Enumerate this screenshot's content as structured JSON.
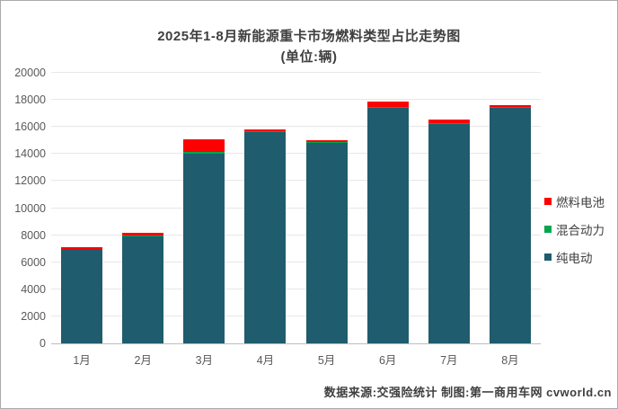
{
  "title": {
    "line1": "2025年1-8月新能源重卡市场燃料类型占比走势图",
    "line2": "(单位:辆)"
  },
  "footer": {
    "text": "数据来源:交强险统计  制图:第一商用车网 cvworld.cn"
  },
  "chart_data": {
    "type": "bar",
    "stacked": true,
    "title": "2025年1-8月新能源重卡市场燃料类型占比走势图(单位:辆)",
    "categories": [
      "1月",
      "2月",
      "3月",
      "4月",
      "5月",
      "6月",
      "7月",
      "8月"
    ],
    "series": [
      {
        "name": "纯电动",
        "color": "#1f5c6d",
        "values": [
          6950,
          7900,
          14050,
          15600,
          14850,
          17400,
          16200,
          17400
        ]
      },
      {
        "name": "混合动力",
        "color": "#00a650",
        "values": [
          30,
          100,
          130,
          110,
          40,
          110,
          100,
          110
        ]
      },
      {
        "name": "燃料电池",
        "color": "#fe0000",
        "values": [
          110,
          150,
          920,
          140,
          130,
          380,
          280,
          130
        ]
      }
    ],
    "totals": [
      7090,
      8150,
      15100,
      15850,
      15020,
      17890,
      16580,
      17640
    ],
    "ylim": [
      0,
      20000
    ],
    "ytick_step": 2000,
    "ytick_labels": [
      "0",
      "2000",
      "4000",
      "6000",
      "8000",
      "10000",
      "12000",
      "14000",
      "16000",
      "18000",
      "20000"
    ],
    "grid": true,
    "legend_position": "right",
    "legend_order_top_to_bottom": [
      "燃料电池",
      "混合动力",
      "纯电动"
    ],
    "colors": {
      "grid": "#e7e7e7",
      "axis_line": "#bebebe",
      "tick_text": "#595959",
      "title_text": "#3f3f3f"
    }
  }
}
